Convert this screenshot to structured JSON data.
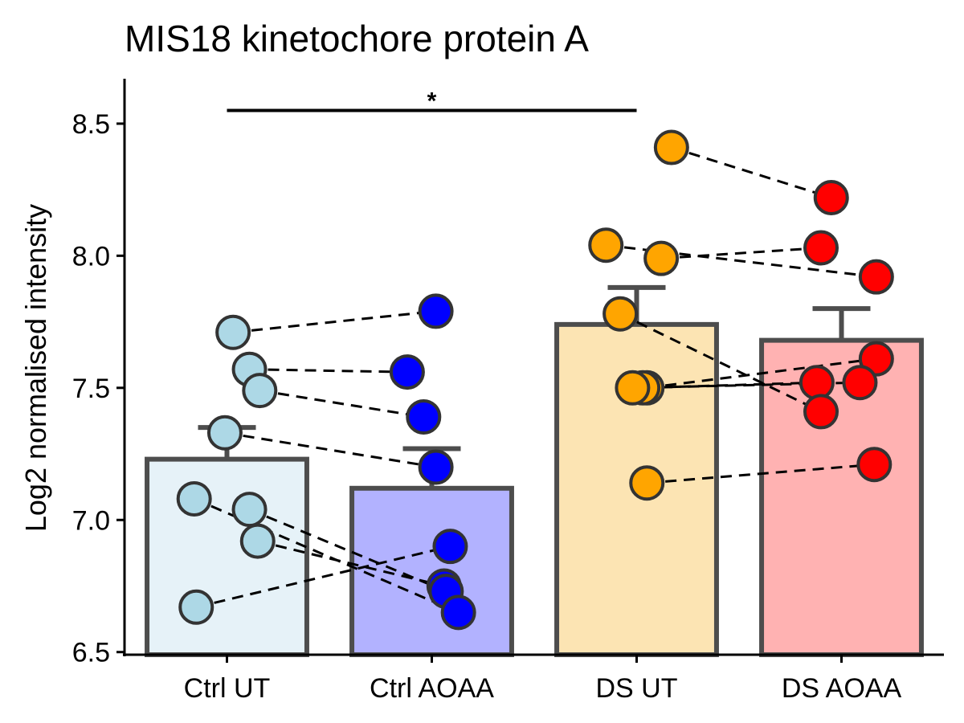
{
  "chart_data": {
    "type": "bar",
    "title": "MIS18 kinetochore protein A",
    "ylabel": "Log2 normalised intensity",
    "xlabel": "",
    "ylim": [
      6.49,
      8.67
    ],
    "yticks": [
      6.5,
      7.0,
      7.5,
      8.0,
      8.5
    ],
    "ytick_labels": [
      "6.5",
      "7.0",
      "7.5",
      "8.0",
      "8.5"
    ],
    "grid": false,
    "legend": "none",
    "categories": [
      "Ctrl UT",
      "Ctrl AOAA",
      "DS UT",
      "DS AOAA"
    ],
    "means": [
      7.23,
      7.12,
      7.74,
      7.68
    ],
    "errors": [
      0.12,
      0.15,
      0.14,
      0.12
    ],
    "bar_fill": [
      "#e6f2f8",
      "#b2b2ff",
      "#fce4b3",
      "#ffb2b2"
    ],
    "point_fill": [
      "#add8e6",
      "#0000ff",
      "#ffa500",
      "#ff0000"
    ],
    "bar_stroke": "#4d4d4d",
    "points": [
      [
        7.71,
        7.57,
        7.49,
        7.33,
        7.08,
        7.04,
        6.92,
        6.67
      ],
      [
        7.79,
        7.56,
        7.39,
        7.2,
        6.9,
        6.75,
        6.73,
        6.65
      ],
      [
        8.41,
        8.04,
        7.99,
        7.78,
        7.5,
        7.5,
        7.5,
        7.14
      ],
      [
        8.22,
        8.03,
        7.92,
        7.61,
        7.52,
        7.52,
        7.41,
        7.21
      ]
    ],
    "point_offsets": [
      [
        0.03,
        0.11,
        0.16,
        -0.01,
        -0.16,
        0.11,
        0.15,
        -0.15
      ],
      [
        0.02,
        -0.12,
        -0.04,
        0.02,
        0.09,
        0.06,
        0.07,
        0.13
      ],
      [
        0.17,
        -0.15,
        0.12,
        -0.08,
        0.05,
        0.03,
        -0.02,
        0.05
      ],
      [
        -0.05,
        -0.1,
        0.17,
        0.17,
        -0.12,
        0.09,
        -0.1,
        0.16
      ]
    ],
    "pairs": [
      {
        "from_group": 0,
        "to_group": 1,
        "from_values": [
          7.71,
          7.57,
          7.49,
          7.33,
          7.08,
          7.04,
          6.92,
          6.67
        ],
        "to_values": [
          7.79,
          7.56,
          7.39,
          7.2,
          6.65,
          6.73,
          6.75,
          6.9
        ]
      },
      {
        "from_group": 2,
        "to_group": 3,
        "from_values": [
          8.41,
          8.04,
          7.99,
          7.78,
          7.5,
          7.5,
          7.5,
          7.14
        ],
        "to_values": [
          8.22,
          7.92,
          8.03,
          7.41,
          7.61,
          7.52,
          7.52,
          7.21
        ]
      }
    ],
    "significance": [
      {
        "from": "Ctrl UT",
        "to": "DS UT",
        "label": "*",
        "y": 8.55
      }
    ]
  }
}
